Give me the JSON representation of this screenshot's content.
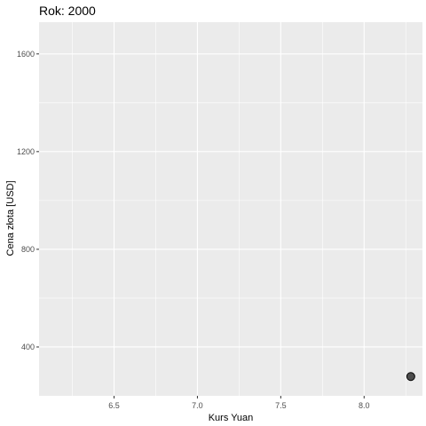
{
  "chart_data": {
    "type": "scatter",
    "title": "Rok: 2000",
    "xlabel": "Kurs Yuan",
    "ylabel": "Cena złota [USD]",
    "xlim": [
      6.05,
      8.35
    ],
    "ylim": [
      200,
      1730
    ],
    "x_ticks": [
      6.5,
      7.0,
      7.5,
      8.0
    ],
    "x_tick_labels": [
      "6.5",
      "7.0",
      "7.5",
      "8.0"
    ],
    "y_ticks": [
      400,
      800,
      1200,
      1600
    ],
    "y_tick_labels": [
      "400",
      "800",
      "1200",
      "1600"
    ],
    "grid": true,
    "panel_color": "#ebebeb",
    "grid_color": "#ffffff",
    "point_fill": "#4d4d4d",
    "point_stroke": "#000000",
    "points": [
      {
        "x": 8.28,
        "y": 279
      }
    ]
  }
}
